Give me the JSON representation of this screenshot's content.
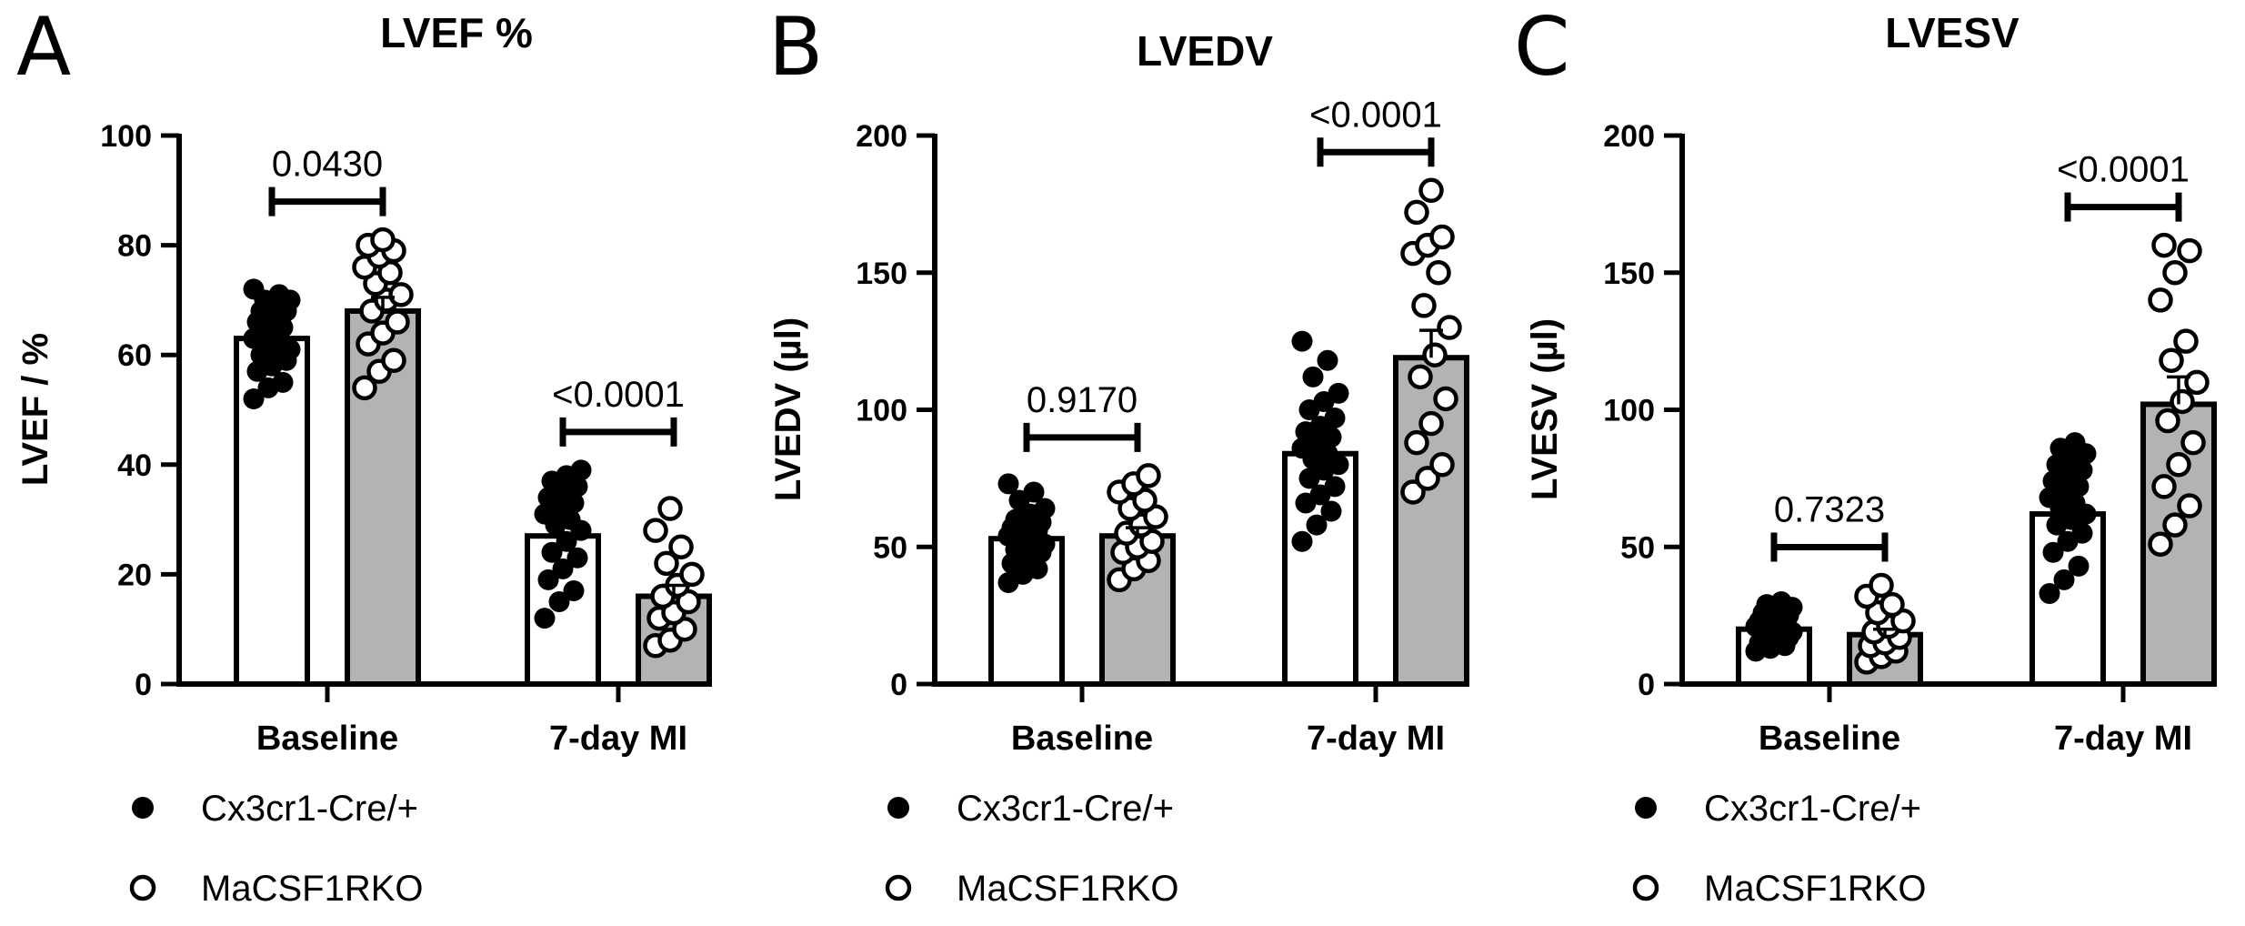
{
  "colors": {
    "wt_bar": "#ffffff",
    "ko_bar": "#b3b3b3",
    "ink": "#000000"
  },
  "legend": {
    "entries": [
      {
        "label": "Cx3cr1-Cre/+",
        "marker": "filled-circle"
      },
      {
        "label": "MaCSF1RKO",
        "marker": "open-circle"
      }
    ]
  },
  "chart_data": [
    {
      "panel_letter": "A",
      "type": "bar",
      "title": "LVEF %",
      "ylabel": "LVEF / %",
      "xlabel": "",
      "ylim": [
        0,
        100
      ],
      "yticks": [
        0,
        20,
        40,
        60,
        80,
        100
      ],
      "categories": [
        "Baseline",
        "7-day MI"
      ],
      "series": [
        {
          "name": "Cx3cr1-Cre/+",
          "fill": "white",
          "values": [
            63,
            27
          ],
          "errors": [
            1.3,
            1.8
          ],
          "points": [
            [
              52,
              54,
              55,
              57,
              58,
              59,
              60,
              60,
              61,
              62,
              63,
              63,
              64,
              65,
              66,
              67,
              68,
              68,
              69,
              70,
              70,
              71,
              72
            ],
            [
              12,
              15,
              17,
              19,
              21,
              23,
              24,
              26,
              28,
              29,
              30,
              31,
              32,
              33,
              34,
              35,
              36,
              37,
              38,
              39
            ]
          ]
        },
        {
          "name": "MaCSF1RKO",
          "fill": "gray",
          "values": [
            68,
            16
          ],
          "errors": [
            2.5,
            2.0
          ],
          "points": [
            [
              54,
              57,
              59,
              62,
              64,
              66,
              68,
              70,
              71,
              73,
              75,
              76,
              78,
              79,
              80,
              81
            ],
            [
              7,
              8,
              10,
              12,
              13,
              15,
              16,
              18,
              20,
              22,
              25,
              28,
              32
            ]
          ]
        }
      ],
      "comparisons": [
        {
          "category_index": 0,
          "p_value": "0.0430"
        },
        {
          "category_index": 1,
          "p_value": "<0.0001"
        }
      ]
    },
    {
      "panel_letter": "B",
      "type": "bar",
      "title": "LVEDV",
      "ylabel": "LVEDV (µl)",
      "xlabel": "",
      "ylim": [
        0,
        200
      ],
      "yticks": [
        0,
        50,
        100,
        150,
        200
      ],
      "categories": [
        "Baseline",
        "7-day MI"
      ],
      "series": [
        {
          "name": "Cx3cr1-Cre/+",
          "fill": "white",
          "values": [
            53,
            84
          ],
          "errors": [
            1.8,
            3.5
          ],
          "points": [
            [
              37,
              40,
              42,
              44,
              46,
              48,
              49,
              50,
              51,
              52,
              53,
              54,
              55,
              56,
              57,
              58,
              59,
              60,
              62,
              64,
              67,
              70,
              73
            ],
            [
              52,
              58,
              63,
              66,
              69,
              72,
              75,
              78,
              80,
              82,
              84,
              86,
              88,
              90,
              92,
              94,
              97,
              100,
              103,
              106,
              112,
              118,
              125
            ]
          ]
        },
        {
          "name": "MaCSF1RKO",
          "fill": "gray",
          "values": [
            54,
            119
          ],
          "errors": [
            3.0,
            10.0
          ],
          "points": [
            [
              38,
              42,
              45,
              48,
              50,
              52,
              55,
              58,
              61,
              64,
              67,
              70,
              73,
              76
            ],
            [
              70,
              75,
              80,
              88,
              95,
              104,
              112,
              120,
              130,
              138,
              150,
              157,
              160,
              163,
              172,
              180
            ]
          ]
        }
      ],
      "comparisons": [
        {
          "category_index": 0,
          "p_value": "0.9170"
        },
        {
          "category_index": 1,
          "p_value": "<0.0001"
        }
      ]
    },
    {
      "panel_letter": "C",
      "type": "bar",
      "title": "LVESV",
      "ylabel": "LVESV (µl)",
      "xlabel": "",
      "ylim": [
        0,
        200
      ],
      "yticks": [
        0,
        50,
        100,
        150,
        200
      ],
      "categories": [
        "Baseline",
        "7-day MI"
      ],
      "series": [
        {
          "name": "Cx3cr1-Cre/+",
          "fill": "white",
          "values": [
            20,
            62
          ],
          "errors": [
            1.0,
            3.0
          ],
          "points": [
            [
              12,
              13,
              14,
              15,
              16,
              17,
              18,
              18,
              19,
              20,
              20,
              21,
              22,
              22,
              23,
              24,
              25,
              26,
              27,
              28,
              29,
              30
            ],
            [
              33,
              38,
              43,
              48,
              52,
              55,
              58,
              60,
              62,
              64,
              66,
              68,
              70,
              72,
              74,
              76,
              78,
              80,
              82,
              84,
              86,
              88
            ]
          ]
        },
        {
          "name": "MaCSF1RKO",
          "fill": "gray",
          "values": [
            18,
            102
          ],
          "errors": [
            2.0,
            10.0
          ],
          "points": [
            [
              8,
              10,
              12,
              14,
              15,
              17,
              19,
              21,
              23,
              26,
              29,
              32,
              36
            ],
            [
              51,
              58,
              65,
              72,
              80,
              88,
              96,
              103,
              110,
              118,
              125,
              140,
              150,
              158,
              160
            ]
          ]
        }
      ],
      "comparisons": [
        {
          "category_index": 0,
          "p_value": "0.7323"
        },
        {
          "category_index": 1,
          "p_value": "<0.0001"
        }
      ]
    }
  ]
}
